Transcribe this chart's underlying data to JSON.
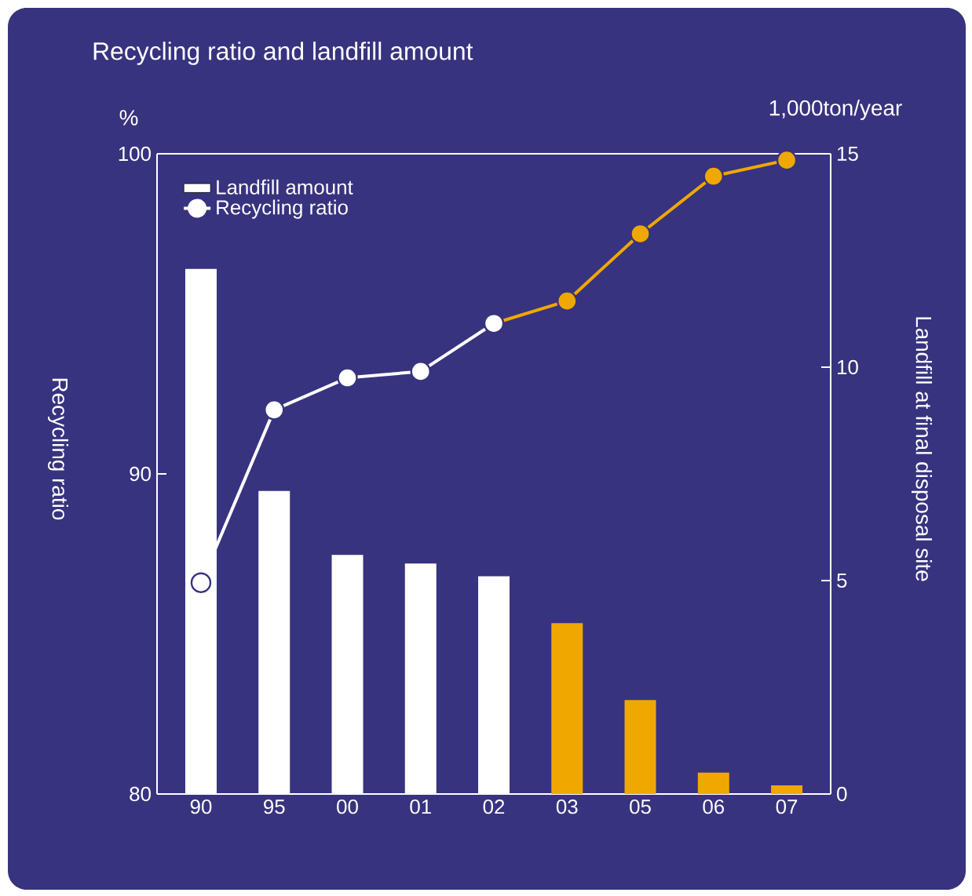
{
  "chart_data": {
    "type": "bar",
    "title": "Recycling ratio and landfill amount",
    "ylabel": "Recycling ratio",
    "y2label": "Landfill at final disposal site",
    "annotations": [
      "%",
      "1,000ton/year"
    ],
    "categories": [
      "90",
      "95",
      "00",
      "01",
      "02",
      "03",
      "05",
      "06",
      "07"
    ],
    "series": [
      {
        "name": "Landfill amount",
        "axis": "y2",
        "colors": [
          "#ffffff",
          "#ffffff",
          "#ffffff",
          "#ffffff",
          "#ffffff",
          "#f0a800",
          "#f0a800",
          "#f0a800",
          "#f0a800"
        ],
        "values": [
          12.3,
          7.1,
          5.6,
          5.4,
          5.1,
          4.0,
          2.2,
          0.5,
          0.2
        ]
      },
      {
        "type": "line",
        "color": "#f0a800",
        "values": [
          null,
          null,
          null,
          null,
          94.7,
          95.4,
          97.5,
          99.3,
          99.8
        ]
      },
      {
        "name": "Recycling ratio",
        "type": "line",
        "color": "#ffffff",
        "values": [
          86.6,
          92.0,
          93.0,
          93.2,
          94.7,
          null,
          null,
          null,
          null
        ]
      }
    ],
    "ylim": [
      80,
      100
    ],
    "yticks": [
      80,
      90,
      100
    ],
    "y2lim": [
      0,
      15
    ],
    "y2ticks": [
      0,
      5,
      10,
      15
    ],
    "legend": "top left",
    "marker": "circle"
  }
}
